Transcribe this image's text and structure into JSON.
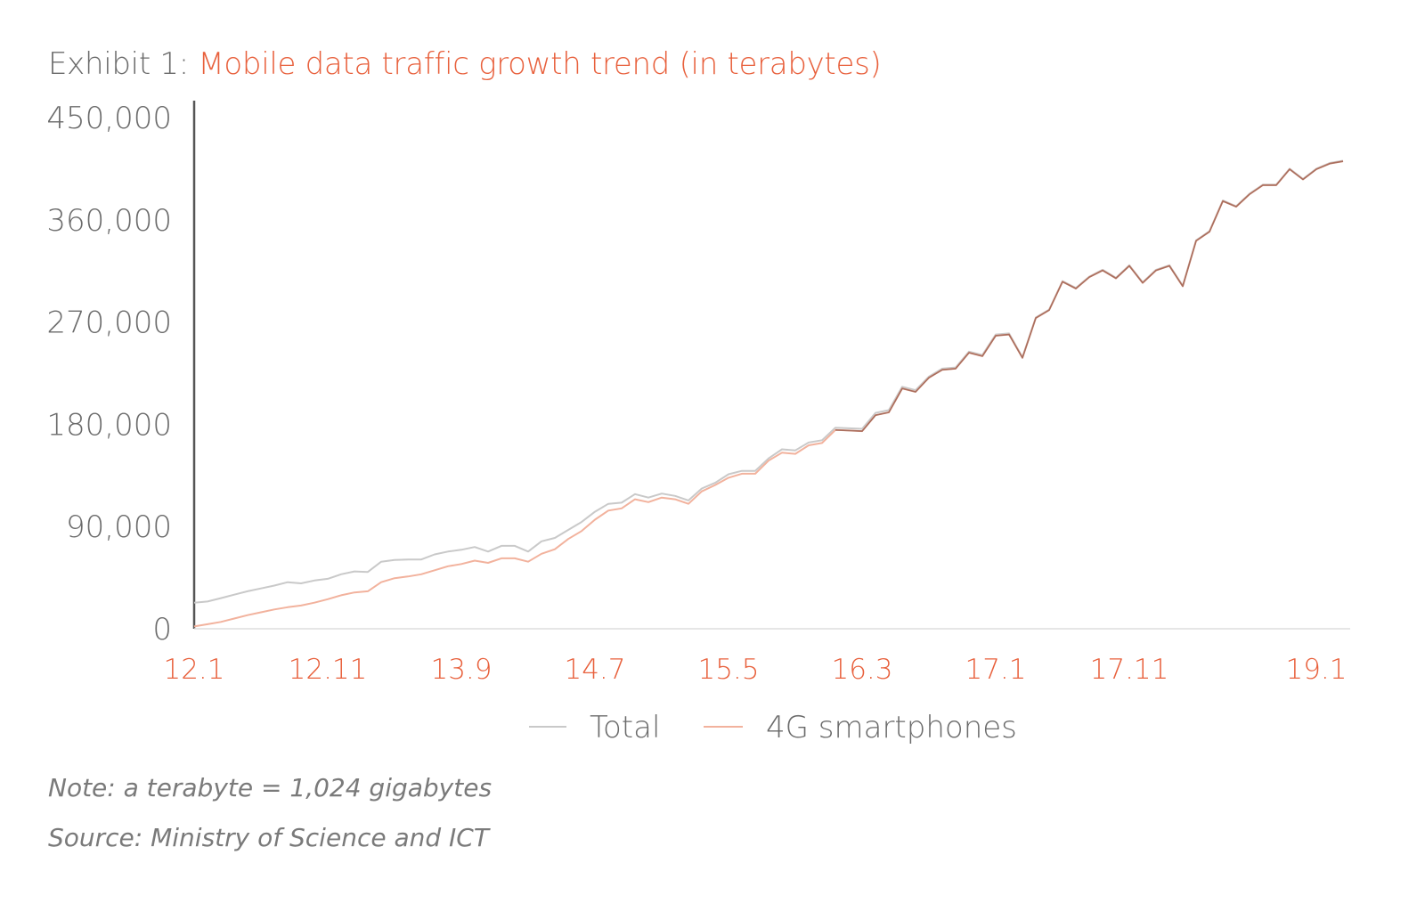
{
  "title": {
    "prefix": "Exhibit 1:",
    "main": "Mobile data traffic growth trend (in terabytes)"
  },
  "notes": {
    "note": "Note: a terabyte = 1,024 gigabytes",
    "source": "Source: Ministry of Science and ICT"
  },
  "colors": {
    "total": "#c9c9c9",
    "fourg": "#f2b29d",
    "accent": "#e8603c",
    "axis_text": "#6b6b6b",
    "axis_line": "#555555"
  },
  "chart_data": {
    "type": "line",
    "xlabel": "",
    "ylabel": "",
    "ylim": [
      0,
      450000
    ],
    "yticks": [
      0,
      90000,
      180000,
      270000,
      360000,
      450000
    ],
    "ytick_labels": [
      "0",
      "90,000",
      "180,000",
      "270,000",
      "360,000",
      "450,000"
    ],
    "xtick_labels": [
      "12.1",
      "12.11",
      "13.9",
      "14.7",
      "15.5",
      "16.3",
      "17.1",
      "17.11",
      "19.1"
    ],
    "xtick_positions": [
      "12.1",
      "12.11",
      "13.9",
      "14.7",
      "15.5",
      "16.3",
      "17.1",
      "17.11",
      "19.1"
    ],
    "x": [
      "12.1",
      "12.2",
      "12.3",
      "12.4",
      "12.5",
      "12.6",
      "12.7",
      "12.8",
      "12.9",
      "12.10",
      "12.11",
      "12.12",
      "13.1",
      "13.2",
      "13.3",
      "13.4",
      "13.5",
      "13.6",
      "13.7",
      "13.8",
      "13.9",
      "13.10",
      "13.11",
      "13.12",
      "14.1",
      "14.2",
      "14.3",
      "14.4",
      "14.5",
      "14.6",
      "14.7",
      "14.8",
      "14.9",
      "14.10",
      "14.11",
      "14.12",
      "15.1",
      "15.2",
      "15.3",
      "15.4",
      "15.5",
      "15.6",
      "15.7",
      "15.8",
      "15.9",
      "15.10",
      "15.11",
      "15.12",
      "16.1",
      "16.2",
      "16.3",
      "16.4",
      "16.5",
      "16.6",
      "16.7",
      "16.8",
      "16.9",
      "16.10",
      "16.11",
      "16.12",
      "17.1",
      "17.2",
      "17.3",
      "17.4",
      "17.5",
      "17.6",
      "17.7",
      "17.8",
      "17.9",
      "17.10",
      "17.11",
      "17.12",
      "18.1",
      "18.2",
      "18.3",
      "18.4",
      "18.5",
      "18.6",
      "18.7",
      "18.8",
      "18.9",
      "18.10",
      "18.11",
      "18.12",
      "19.1",
      "19.2",
      "19.3"
    ],
    "legend_position": "bottom",
    "series": [
      {
        "name": "Total",
        "values": [
          23000,
          24000,
          27000,
          30000,
          33000,
          35500,
          38000,
          41000,
          40000,
          42500,
          44000,
          48000,
          50500,
          50000,
          59000,
          60500,
          61000,
          61000,
          65500,
          68000,
          69500,
          72000,
          68000,
          73000,
          73000,
          68000,
          77000,
          80000,
          87000,
          94000,
          103000,
          110000,
          111000,
          118500,
          115500,
          119000,
          117000,
          113000,
          123500,
          128500,
          136000,
          139000,
          139000,
          150000,
          158000,
          157000,
          164000,
          166000,
          177000,
          176500,
          176000,
          190000,
          192500,
          213000,
          210000,
          222000,
          229000,
          230000,
          244000,
          241000,
          259000,
          260000,
          239000,
          274000,
          281000,
          306000,
          300000,
          310000,
          316000,
          309000,
          320000,
          305000,
          316000,
          320000,
          302000,
          342000,
          350000,
          377000,
          372000,
          383000,
          391000,
          391000,
          405000,
          396000,
          405000,
          410000,
          412000
        ]
      },
      {
        "name": "4G smartphones",
        "values": [
          2000,
          4000,
          6000,
          9000,
          12000,
          14500,
          17000,
          19000,
          20500,
          23000,
          26000,
          29500,
          32000,
          33000,
          41000,
          44500,
          46000,
          48000,
          51500,
          55000,
          57000,
          60000,
          58000,
          62000,
          62000,
          59000,
          66000,
          70000,
          79000,
          86000,
          96000,
          104000,
          106000,
          114000,
          111500,
          115500,
          114000,
          110000,
          121000,
          126500,
          133000,
          136500,
          136500,
          148000,
          155000,
          154000,
          161500,
          163500,
          175000,
          174500,
          174000,
          188000,
          190500,
          211500,
          208500,
          221000,
          228000,
          229000,
          243000,
          240000,
          258000,
          259000,
          238500,
          273500,
          280500,
          305500,
          299500,
          309500,
          315500,
          308500,
          319500,
          304500,
          315500,
          319500,
          301500,
          341500,
          349500,
          376500,
          371500,
          382500,
          390500,
          390500,
          404500,
          395500,
          404500,
          409500,
          411500
        ]
      }
    ]
  }
}
